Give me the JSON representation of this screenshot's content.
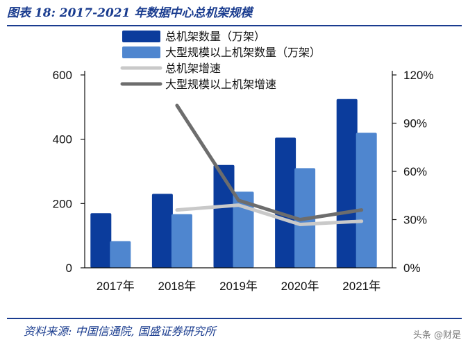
{
  "header": {
    "title": "图表 18:  2017-2021 年数据中心总机架规模"
  },
  "footer": {
    "source": "资料来源:  中国信通院, 国盛证券研究所",
    "watermark": "头条 @财是"
  },
  "colors": {
    "title": "#1a3c8f",
    "bar_total": "#0b3c9c",
    "bar_large": "#4f86cf",
    "line_total": "#c9c9c9",
    "line_large": "#6d6d6d"
  },
  "chart_data": {
    "type": "bar",
    "categories": [
      "2017年",
      "2018年",
      "2019年",
      "2020年",
      "2021年"
    ],
    "series": [
      {
        "name": "总机架数量（万架）",
        "type": "bar",
        "axis": "left",
        "values": [
          170,
          230,
          320,
          405,
          525
        ]
      },
      {
        "name": "大型规模以上机架数量（万架）",
        "type": "bar",
        "axis": "left",
        "values": [
          83,
          167,
          237,
          310,
          420
        ]
      },
      {
        "name": "总机架增速",
        "type": "line",
        "axis": "right",
        "values": [
          null,
          0.36,
          0.39,
          0.27,
          0.29
        ]
      },
      {
        "name": "大型规模以上机架增速",
        "type": "line",
        "axis": "right",
        "values": [
          null,
          1.01,
          0.42,
          0.3,
          0.36
        ]
      }
    ],
    "y_left": {
      "min": 0,
      "max": 600,
      "ticks": [
        0,
        200,
        400,
        600
      ],
      "tick_labels": [
        "0",
        "200",
        "400",
        "600"
      ]
    },
    "y_right": {
      "min": 0,
      "max": 1.2,
      "ticks": [
        0,
        0.3,
        0.6,
        0.9,
        1.2
      ],
      "tick_labels": [
        "0%",
        "30%",
        "60%",
        "90%",
        "120%"
      ]
    },
    "legend_position": "top-center",
    "grid": false
  }
}
